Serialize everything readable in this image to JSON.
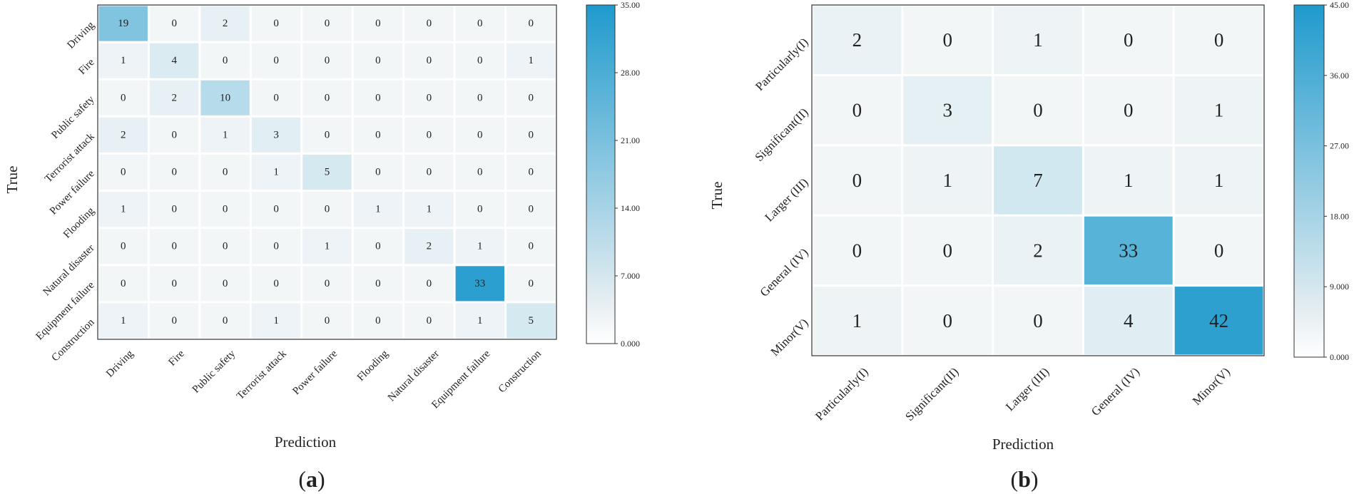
{
  "chart_data": [
    {
      "type": "heatmap",
      "panel_label": "a",
      "xlabel": "Prediction",
      "ylabel": "True",
      "x_categories": [
        "Driving",
        "Fire",
        "Public safety",
        "Terrorist attack",
        "Power failure",
        "Flooding",
        "Natural disaster",
        "Equipment failure",
        "Construction"
      ],
      "y_categories": [
        "Driving",
        "Fire",
        "Public safety",
        "Terrorist attack",
        "Power failure",
        "Flooding",
        "Natural disaster",
        "Equipment failure",
        "Construction"
      ],
      "matrix": [
        [
          19,
          0,
          2,
          0,
          0,
          0,
          0,
          0,
          0
        ],
        [
          1,
          4,
          0,
          0,
          0,
          0,
          0,
          0,
          1
        ],
        [
          0,
          2,
          10,
          0,
          0,
          0,
          0,
          0,
          0
        ],
        [
          2,
          0,
          1,
          3,
          0,
          0,
          0,
          0,
          0
        ],
        [
          0,
          0,
          0,
          1,
          5,
          0,
          0,
          0,
          0
        ],
        [
          1,
          0,
          0,
          0,
          0,
          1,
          1,
          0,
          0
        ],
        [
          0,
          0,
          0,
          0,
          1,
          0,
          2,
          1,
          0
        ],
        [
          0,
          0,
          0,
          0,
          0,
          0,
          0,
          33,
          0
        ],
        [
          1,
          0,
          0,
          1,
          0,
          0,
          0,
          1,
          5
        ]
      ],
      "colorbar_range": [
        0,
        35
      ],
      "colorbar_ticks": [
        "0.000",
        "7.000",
        "14.00",
        "21.00",
        "28.00",
        "35.00"
      ],
      "colormap": [
        "#f3f6f7",
        "#1f9acd"
      ]
    },
    {
      "type": "heatmap",
      "panel_label": "b",
      "xlabel": "Prediction",
      "ylabel": "True",
      "x_categories": [
        "Particularly(I)",
        "Significant(II)",
        "Larger (III)",
        "General (IV)",
        "Minor(V)"
      ],
      "y_categories": [
        "Particularly(I)",
        "Significant(II)",
        "Larger (III)",
        "General (IV)",
        "Minor(V)"
      ],
      "matrix": [
        [
          2,
          0,
          1,
          0,
          0
        ],
        [
          0,
          3,
          0,
          0,
          1
        ],
        [
          0,
          1,
          7,
          1,
          1
        ],
        [
          0,
          0,
          2,
          33,
          0
        ],
        [
          1,
          0,
          0,
          4,
          42
        ]
      ],
      "colorbar_range": [
        0,
        45
      ],
      "colorbar_ticks": [
        "0.000",
        "9.000",
        "18.00",
        "27.00",
        "36.00",
        "45.00"
      ],
      "colormap": [
        "#f3f6f7",
        "#1f9acd"
      ]
    }
  ]
}
